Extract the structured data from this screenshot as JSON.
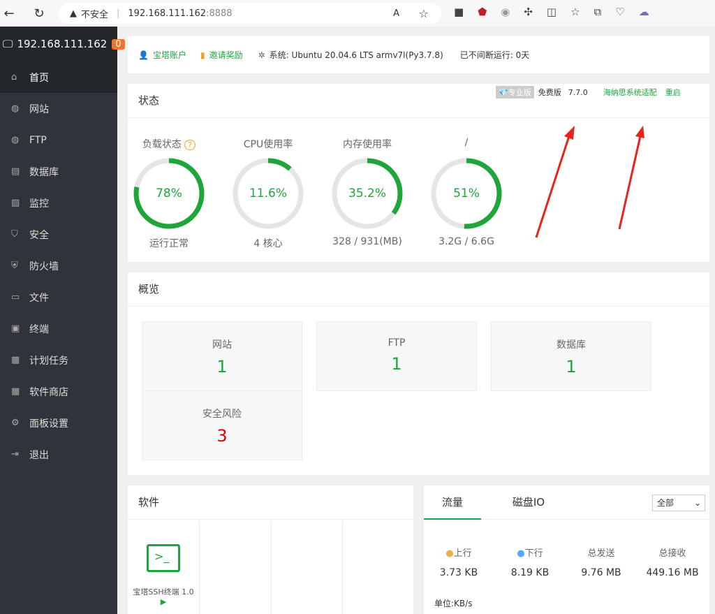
{
  "browser": {
    "security": "不安全",
    "host": "192.168.111.162",
    "port": ":8888"
  },
  "sidebar": {
    "host": "192.168.111.162",
    "badge": "0",
    "items": [
      {
        "label": "首页",
        "icon": "home-icon"
      },
      {
        "label": "网站",
        "icon": "globe-icon"
      },
      {
        "label": "FTP",
        "icon": "ftp-icon"
      },
      {
        "label": "数据库",
        "icon": "database-icon"
      },
      {
        "label": "监控",
        "icon": "monitor-icon"
      },
      {
        "label": "安全",
        "icon": "shield-icon"
      },
      {
        "label": "防火墙",
        "icon": "firewall-icon"
      },
      {
        "label": "文件",
        "icon": "folder-icon"
      },
      {
        "label": "终端",
        "icon": "terminal-icon"
      },
      {
        "label": "计划任务",
        "icon": "calendar-icon"
      },
      {
        "label": "软件商店",
        "icon": "apps-icon"
      },
      {
        "label": "面板设置",
        "icon": "gear-icon"
      },
      {
        "label": "退出",
        "icon": "logout-icon"
      }
    ]
  },
  "topbar": {
    "account": "宝塔账户",
    "invite": "邀请奖励",
    "system_label": "系统:",
    "system": "Ubuntu 20.04.6 LTS armv7l(Py3.7.8)",
    "uptime": "已不间断运行: 0天"
  },
  "status": {
    "title": "状态",
    "pro": "专业版",
    "edition": "免费版",
    "version": "7.7.0",
    "adapt": "海纳思系统适配",
    "restart": "重启",
    "gauges": [
      {
        "label": "负载状态",
        "value": "78%",
        "percent": 78,
        "sub": "运行正常"
      },
      {
        "label": "CPU使用率",
        "value": "11.6%",
        "percent": 11.6,
        "sub": "4 核心"
      },
      {
        "label": "内存使用率",
        "value": "35.2%",
        "percent": 35.2,
        "sub": "328 / 931(MB)"
      },
      {
        "label": "/",
        "value": "51%",
        "percent": 51,
        "sub": "3.2G / 6.6G"
      }
    ]
  },
  "overview": {
    "title": "概览",
    "items": [
      {
        "label": "网站",
        "value": "1"
      },
      {
        "label": "FTP",
        "value": "1"
      },
      {
        "label": "数据库",
        "value": "1"
      },
      {
        "label": "安全风险",
        "value": "3"
      }
    ]
  },
  "software": {
    "title": "软件",
    "items": [
      {
        "label": "宝塔SSH终端 1.0"
      }
    ]
  },
  "traffic": {
    "tabs": [
      "流量",
      "磁盘IO"
    ],
    "select": "全部",
    "stats": [
      {
        "label": "上行",
        "value": "3.73 KB"
      },
      {
        "label": "下行",
        "value": "8.19 KB"
      },
      {
        "label": "总发送",
        "value": "9.76 MB"
      },
      {
        "label": "总接收",
        "value": "449.16 MB"
      }
    ],
    "unit": "单位:KB/s"
  },
  "colors": {
    "accent": "#20a53a",
    "danger": "#e00000",
    "sidebar": "#30343a"
  }
}
